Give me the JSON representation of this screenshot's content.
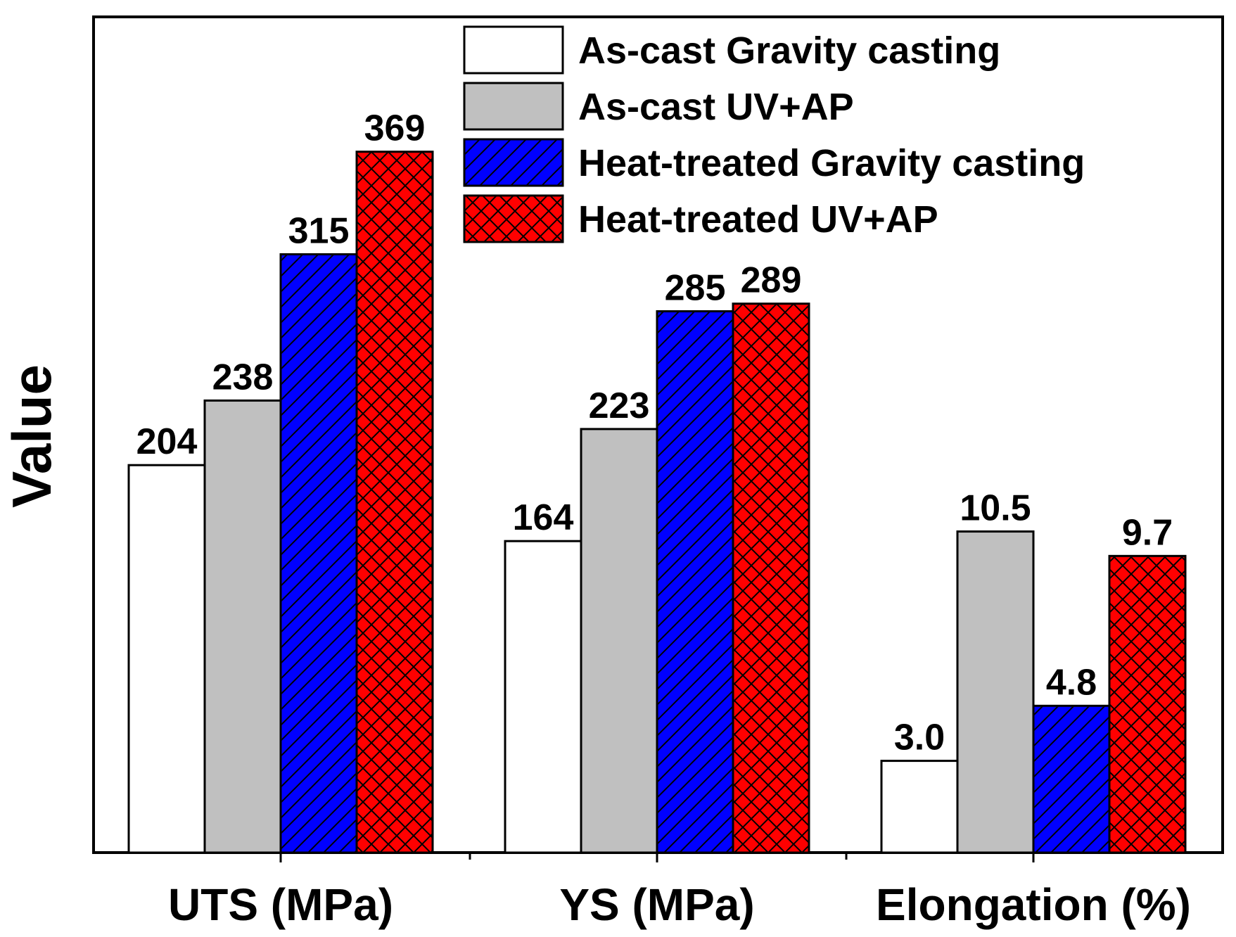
{
  "chart_data": {
    "type": "bar",
    "ylabel": "Value",
    "categories": [
      "UTS (MPa)",
      "YS (MPa)",
      "Elongation (%)"
    ],
    "legend_position": "top-right",
    "series": [
      {
        "name": "As-cast Gravity casting",
        "color": "#ffffff",
        "pattern": "none",
        "values": [
          204,
          164,
          3.0
        ],
        "labels": [
          "204",
          "164",
          "3.0"
        ]
      },
      {
        "name": "As-cast UV+AP",
        "color": "#c0c0c0",
        "pattern": "none",
        "values": [
          238,
          223,
          10.5
        ],
        "labels": [
          "238",
          "223",
          "10.5"
        ]
      },
      {
        "name": "Heat-treated Gravity casting",
        "color": "#0000ff",
        "pattern": "diagonal-hatch",
        "values": [
          315,
          285,
          4.8
        ],
        "labels": [
          "315",
          "285",
          "4.8"
        ]
      },
      {
        "name": "Heat-treated UV+AP",
        "color": "#ff0000",
        "pattern": "cross-hatch",
        "values": [
          369,
          289,
          9.7
        ],
        "labels": [
          "369",
          "289",
          "9.7"
        ]
      }
    ],
    "category_scale": [
      1,
      1,
      16.1
    ],
    "ylim": [
      0,
      440
    ]
  }
}
